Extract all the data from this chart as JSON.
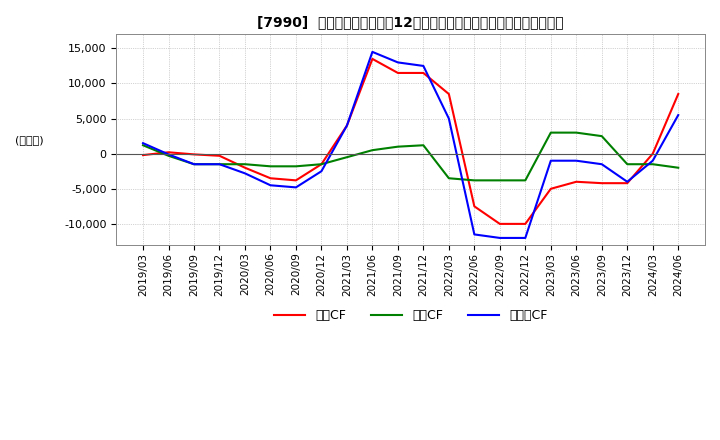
{
  "title": "[7990]  キャッシュフローの12か月移動合計の対前年同期増減額の推移",
  "ylabel": "(百万円)",
  "ylim": [
    -13000,
    17000
  ],
  "yticks": [
    -10000,
    -5000,
    0,
    5000,
    10000,
    15000
  ],
  "background_color": "#ffffff",
  "grid_color": "#aaaaaa",
  "dates": [
    "2019/03",
    "2019/06",
    "2019/09",
    "2019/12",
    "2020/03",
    "2020/06",
    "2020/09",
    "2020/12",
    "2021/03",
    "2021/06",
    "2021/09",
    "2021/12",
    "2022/03",
    "2022/06",
    "2022/09",
    "2022/12",
    "2023/03",
    "2023/06",
    "2023/09",
    "2023/12",
    "2024/03",
    "2024/06"
  ],
  "operating_cf": [
    -200,
    200,
    -100,
    -300,
    -2000,
    -3500,
    -3800,
    -1500,
    4000,
    13500,
    11500,
    11500,
    8500,
    -7500,
    -10000,
    -10000,
    -5000,
    -4000,
    -4200,
    -4200,
    0,
    8500
  ],
  "investing_cf": [
    1200,
    -300,
    -1500,
    -1500,
    -1500,
    -1800,
    -1800,
    -1500,
    -500,
    500,
    1000,
    1200,
    -3500,
    -3800,
    -3800,
    -3800,
    3000,
    3000,
    2500,
    -1500,
    -1500,
    -2000
  ],
  "free_cf": [
    1500,
    -100,
    -1500,
    -1500,
    -2800,
    -4500,
    -4800,
    -2500,
    4000,
    14500,
    13000,
    12500,
    5000,
    -11500,
    -12000,
    -12000,
    -1000,
    -1000,
    -1500,
    -4000,
    -1000,
    5500
  ],
  "operating_color": "#ff0000",
  "investing_color": "#008000",
  "free_color": "#0000ff",
  "legend_labels": [
    "営業CF",
    "投資CF",
    "フリーCF"
  ]
}
